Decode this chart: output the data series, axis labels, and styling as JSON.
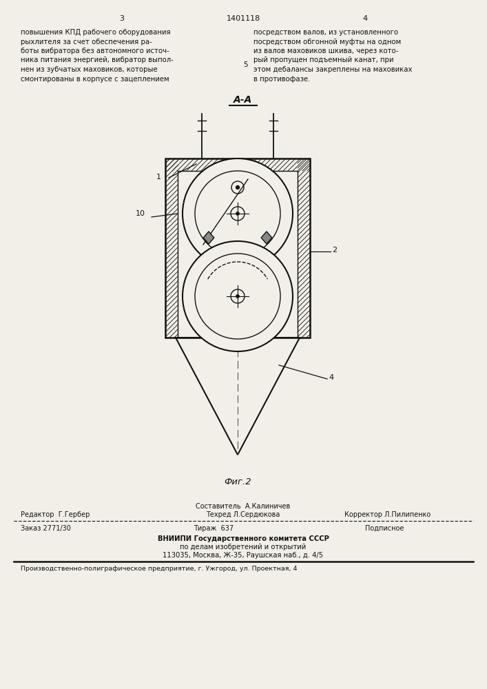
{
  "bg_color": "#f2efe9",
  "page_number_left": "3",
  "page_number_center": "1401118",
  "page_number_right": "4",
  "text_left": "повышения КПД рабочего оборудования\nрыхлителя за счет обеспечения ра-\nботы вибратора без автономного источ-\nника питания энергией, вибратор выпол-\nнен из зубчатых маховиков, которые\nсмонтированы в корпусе с зацеплением",
  "text_right": "посредством валов, из установленного\nпосредством обгонной муфты на одном\nиз валов маховиков шкива, через кото-\nрый пропущен подъемный канат, при\nэтом дебалансы закреплены на маховиках\nв противофазе.",
  "line_number": "5",
  "section_label": "А-А",
  "fig_label": "Фиг.2",
  "label_1": "1",
  "label_2": "2",
  "label_4": "4",
  "label_10": "10",
  "footer_editor": "Редактор  Г.Гербер",
  "footer_composer": "Составитель  А.Калиничев",
  "footer_techred": "Техред Л.Сердюкова",
  "footer_corrector": "Корректор Л.Пилипенко",
  "footer_order": "Заказ 2771/30",
  "footer_tirazh": "Тираж  637",
  "footer_podpisnoe": "Подписное",
  "footer_vniip1": "ВНИИПИ Государственного комитета СССР",
  "footer_vniip2": "по делам изобретений и открытий",
  "footer_vniip3": "113035, Москва, Ж-35, Раушская наб., д. 4/5",
  "footer_last": "Производственно-полиграфическое предприятие, г. Ужгород, ул. Проектная, 4"
}
